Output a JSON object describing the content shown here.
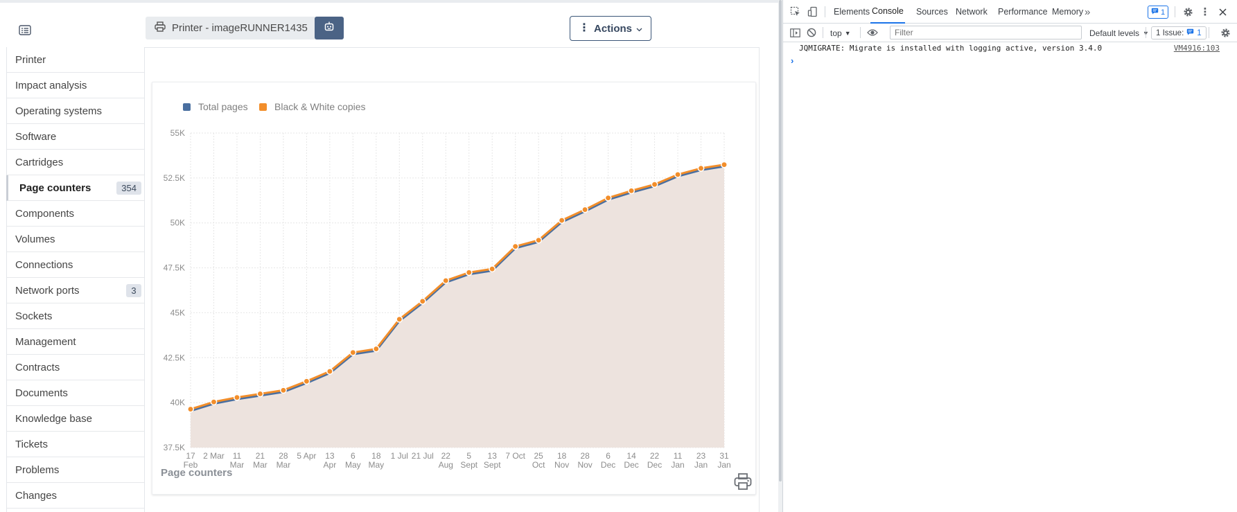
{
  "header": {
    "asset_name": "Printer - imageRUNNER1435",
    "actions_label": "Actions",
    "icons": {
      "toggle": "list-icon",
      "printer": "printer-icon",
      "robot": "robot-icon",
      "dots": "vertical-dots-icon",
      "chevron": "chevron-down-icon"
    }
  },
  "sidebar": {
    "items": [
      {
        "label": "Printer",
        "badge": ""
      },
      {
        "label": "Impact analysis",
        "badge": ""
      },
      {
        "label": "Operating systems",
        "badge": ""
      },
      {
        "label": "Software",
        "badge": ""
      },
      {
        "label": "Cartridges",
        "badge": ""
      },
      {
        "label": "Page counters",
        "badge": "354",
        "active": true
      },
      {
        "label": "Components",
        "badge": ""
      },
      {
        "label": "Volumes",
        "badge": ""
      },
      {
        "label": "Connections",
        "badge": ""
      },
      {
        "label": "Network ports",
        "badge": "3"
      },
      {
        "label": "Sockets",
        "badge": ""
      },
      {
        "label": "Management",
        "badge": ""
      },
      {
        "label": "Contracts",
        "badge": ""
      },
      {
        "label": "Documents",
        "badge": ""
      },
      {
        "label": "Knowledge base",
        "badge": ""
      },
      {
        "label": "Tickets",
        "badge": ""
      },
      {
        "label": "Problems",
        "badge": ""
      },
      {
        "label": "Changes",
        "badge": ""
      }
    ]
  },
  "chart_caption": "Page counters",
  "chart_data": {
    "type": "area",
    "title": "",
    "xlabel": "",
    "ylabel": "",
    "ylim": [
      37500,
      55000
    ],
    "yticks": [
      "37.5K",
      "40K",
      "42.5K",
      "45K",
      "47.5K",
      "50K",
      "52.5K",
      "55K"
    ],
    "ytick_values": [
      37500,
      40000,
      42500,
      45000,
      47500,
      50000,
      52500,
      55000
    ],
    "grid": true,
    "legend_placement": "top-left",
    "categories": [
      [
        "17",
        "Feb"
      ],
      [
        "2 Mar",
        ""
      ],
      [
        "11",
        "Mar"
      ],
      [
        "21",
        "Mar"
      ],
      [
        "28",
        "Mar"
      ],
      [
        "5 Apr",
        ""
      ],
      [
        "13",
        "Apr"
      ],
      [
        "6",
        "May"
      ],
      [
        "18",
        "May"
      ],
      [
        "1 Jul",
        ""
      ],
      [
        "21 Jul",
        ""
      ],
      [
        "22",
        "Aug"
      ],
      [
        "5",
        "Sept"
      ],
      [
        "13",
        "Sept"
      ],
      [
        "7 Oct",
        ""
      ],
      [
        "25",
        "Oct"
      ],
      [
        "18",
        "Nov"
      ],
      [
        "28",
        "Nov"
      ],
      [
        "6",
        "Dec"
      ],
      [
        "14",
        "Dec"
      ],
      [
        "22",
        "Dec"
      ],
      [
        "11",
        "Jan"
      ],
      [
        "23",
        "Jan"
      ],
      [
        "31",
        "Jan"
      ]
    ],
    "series": [
      {
        "name": "Total pages",
        "color": "#4a6fa0",
        "values": [
          39600,
          40000,
          40250,
          40450,
          40650,
          41150,
          41700,
          42750,
          42950,
          44600,
          45600,
          46750,
          47200,
          47400,
          48650,
          49000,
          50100,
          50700,
          51350,
          51750,
          52100,
          52650,
          53000,
          53200
        ]
      },
      {
        "name": "Black & White copies",
        "color": "#f28e2b",
        "values": [
          39600,
          40000,
          40250,
          40450,
          40650,
          41150,
          41700,
          42750,
          42950,
          44600,
          45600,
          46750,
          47200,
          47400,
          48650,
          49000,
          50100,
          50700,
          51350,
          51750,
          52100,
          52650,
          53000,
          53200
        ]
      }
    ],
    "area_color": "#ede3de"
  },
  "devtools": {
    "tabs": [
      "Elements",
      "Console",
      "Sources",
      "Network",
      "Performance",
      "Memory"
    ],
    "active_tab": "Console",
    "more_tabs": "»",
    "issues_count": "1",
    "context": "top",
    "filter_placeholder": "Filter",
    "levels_label": "Default levels",
    "issue_button_label": "1 Issue:",
    "issue_button_count": "1",
    "console_message": "JQMIGRATE: Migrate is installed with logging active, version 3.4.0",
    "console_source": "VM4916:103",
    "prompt": "›",
    "accent": "#1a73e8"
  }
}
